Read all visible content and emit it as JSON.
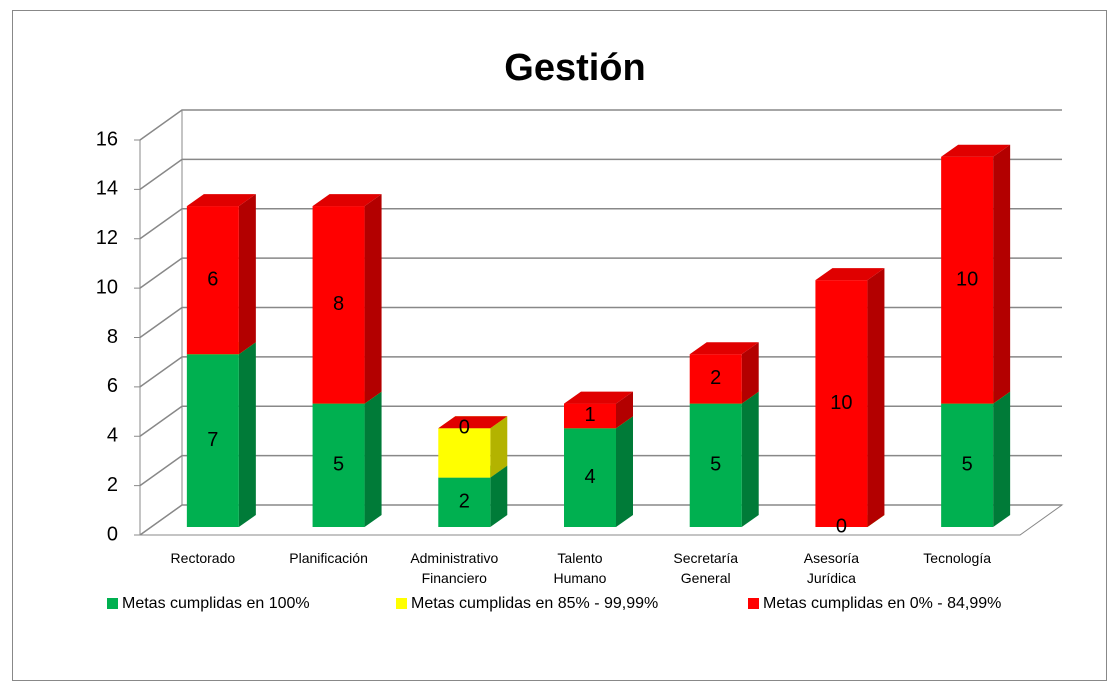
{
  "chart_data": {
    "type": "bar3d_stacked",
    "title": "Gestión",
    "categories": [
      "Rectorado",
      "Planificación",
      "Administrativo Financiero",
      "Talento Humano",
      "Secretaría General",
      "Asesoría Jurídica",
      "Tecnología"
    ],
    "series": [
      {
        "name": "Metas cumplidas en 100%",
        "color": "#00b050",
        "labels": true,
        "values": [
          7,
          5,
          2,
          4,
          5,
          0,
          5
        ]
      },
      {
        "name": "Metas cumplidas en 85% - 99,99%",
        "color": "#ffff00",
        "labels": false,
        "values": [
          0,
          0,
          2,
          0,
          0,
          0,
          0
        ]
      },
      {
        "name": "Metas cumplidas en 0% - 84,99%",
        "color": "#ff0000",
        "labels": true,
        "values": [
          6,
          8,
          0,
          1,
          2,
          10,
          10
        ]
      }
    ],
    "ylim": [
      0,
      16
    ],
    "yticks": [
      0,
      2,
      4,
      6,
      8,
      10,
      12,
      14,
      16
    ],
    "grid": true,
    "legend": "bottom"
  }
}
